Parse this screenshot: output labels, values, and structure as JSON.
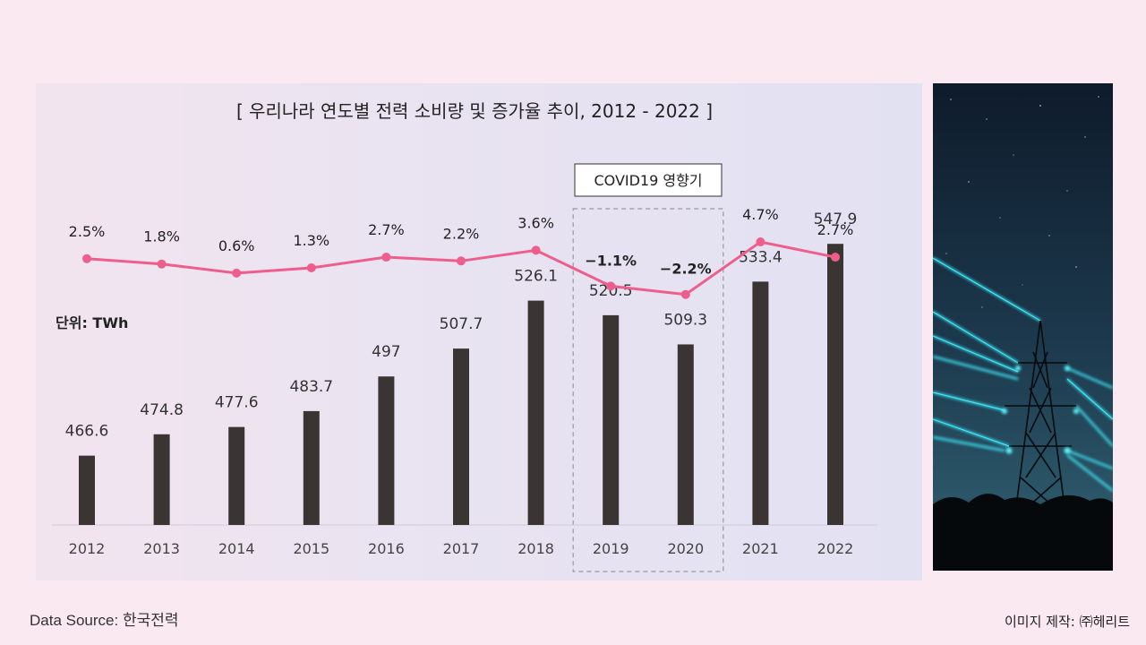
{
  "chart_data": {
    "type": "bar+line",
    "title": "[ 우리나라 연도별 전력 소비량 및 증가율 추이, 2012 - 2022 ]",
    "unit_label": "단위: TWh",
    "categories": [
      "2012",
      "2013",
      "2014",
      "2015",
      "2016",
      "2017",
      "2018",
      "2019",
      "2020",
      "2021",
      "2022"
    ],
    "bar_series": {
      "name": "전력 소비량 (TWh)",
      "values": [
        466.6,
        474.8,
        477.6,
        483.7,
        497,
        507.7,
        526.1,
        520.5,
        509.3,
        533.4,
        547.9
      ],
      "labels": [
        "466.6",
        "474.8",
        "477.6",
        "483.7",
        "497",
        "507.7",
        "526.1",
        "520.5",
        "509.3",
        "533.4",
        "547.9"
      ]
    },
    "line_series": {
      "name": "증가율 (%)",
      "values": [
        2.5,
        1.8,
        0.6,
        1.3,
        2.7,
        2.2,
        3.6,
        -1.1,
        -2.2,
        4.7,
        2.7
      ],
      "labels": [
        "2.5%",
        "1.8%",
        "0.6%",
        "1.3%",
        "2.7%",
        "2.2%",
        "3.6%",
        "−1.1%",
        "−2.2%",
        "4.7%",
        "2.7%"
      ]
    },
    "annotation": {
      "text": "COVID19 영향기",
      "categories": [
        "2019",
        "2020"
      ]
    },
    "ylim_bar": [
      440,
      560
    ],
    "colors": {
      "bar": "#3a3533",
      "line": "#ee5e8c",
      "axis": "#cfcad8",
      "highlight_box": "#999999"
    }
  },
  "footer": {
    "source": "Data Source: 한국전력",
    "credit": "이미지 제작: ㈜헤리트"
  },
  "photo": {
    "icon": "power-tower-image"
  }
}
